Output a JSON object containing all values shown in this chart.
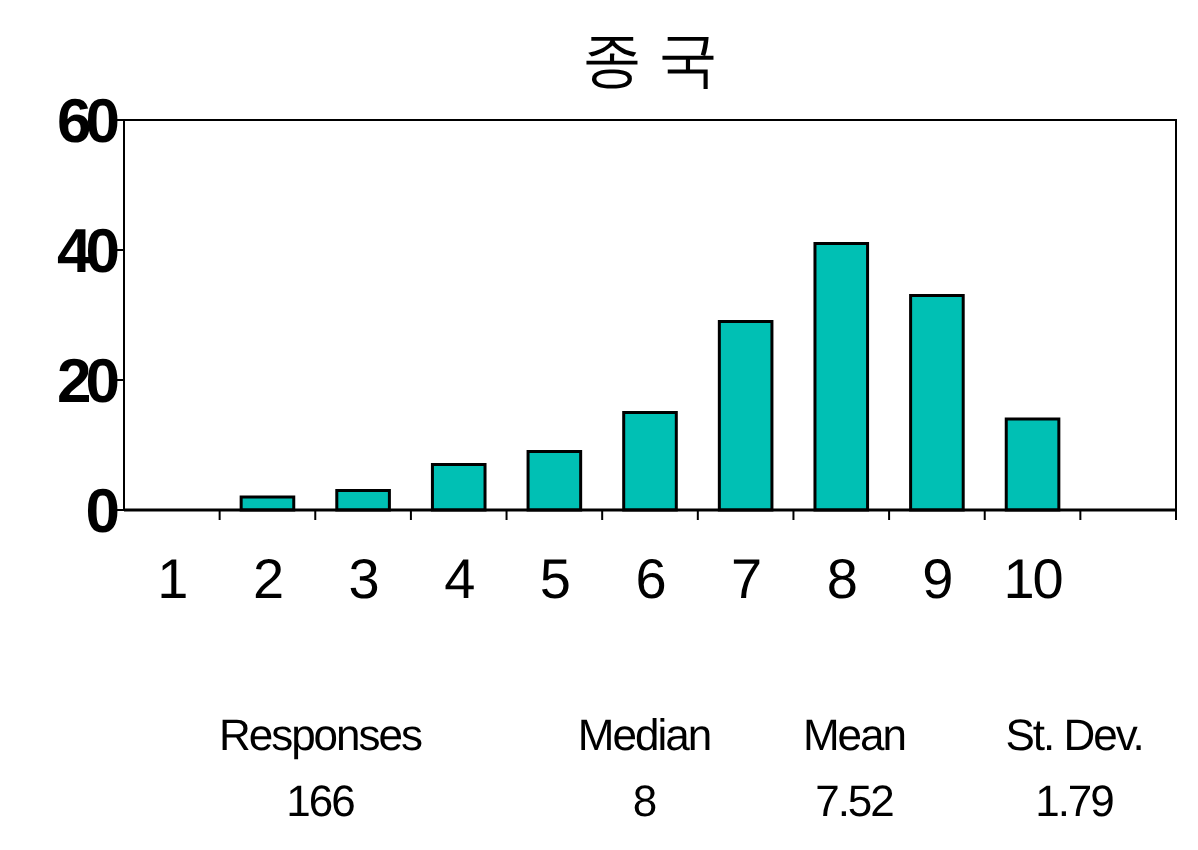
{
  "chart_data": {
    "type": "bar",
    "title": "종 국",
    "categories": [
      "1",
      "2",
      "3",
      "4",
      "5",
      "6",
      "7",
      "8",
      "9",
      "10",
      null
    ],
    "values": [
      0,
      2,
      3,
      7,
      9,
      15,
      29,
      41,
      33,
      14,
      null
    ],
    "color": "#00c0b4",
    "ylim": [
      0,
      60
    ],
    "yticks": [
      0,
      20,
      40,
      60
    ],
    "grid": false,
    "annotations": [
      "Responses",
      "Median",
      "Mean",
      "St. Dev.",
      "166",
      "8",
      "7.52",
      "1.79"
    ]
  }
}
